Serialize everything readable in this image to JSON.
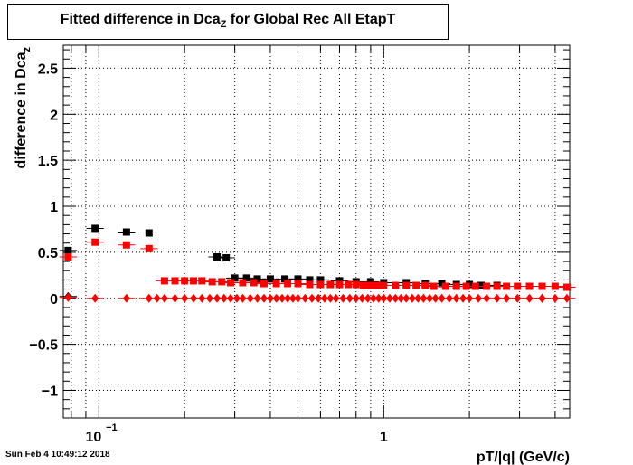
{
  "title": {
    "prefix": "Fitted difference in Dca",
    "subscript": "Z",
    "suffix": " for Global Rec All EtapT"
  },
  "timestamp": "Sun Feb  4 10:49:12 2018",
  "colors": {
    "black": "#000000",
    "red": "#ff0000",
    "grid": "#000000"
  },
  "chart_data": {
    "type": "scatter",
    "xscale": "log",
    "xlim": [
      0.075,
      4.5
    ],
    "ylim": [
      -1.3,
      2.75
    ],
    "grid": true,
    "xlabel": "pT/|q| (GeV/c)",
    "ylabel_prefix": "difference in Dca",
    "ylabel_subscript": "z",
    "yticks": [
      {
        "value": -1,
        "label": "−1"
      },
      {
        "value": -0.5,
        "label": "−0.5"
      },
      {
        "value": 0,
        "label": "0"
      },
      {
        "value": 0.5,
        "label": "0.5"
      },
      {
        "value": 1,
        "label": "1"
      },
      {
        "value": 1.5,
        "label": "1.5"
      },
      {
        "value": 2,
        "label": "2"
      },
      {
        "value": 2.5,
        "label": "2.5"
      }
    ],
    "xticks_major": [
      {
        "value": 0.1,
        "label": "10",
        "exp": "−1"
      },
      {
        "value": 1,
        "label": "1",
        "exp": ""
      }
    ],
    "series": [
      {
        "marker": "square",
        "color": "black",
        "x": [
          0.078,
          0.097,
          0.125,
          0.15,
          0.26,
          0.28,
          0.3,
          0.33,
          0.36,
          0.4,
          0.45,
          0.5,
          0.55,
          0.6,
          0.7,
          0.8,
          0.9,
          1.0,
          1.2,
          1.4,
          1.6,
          1.8,
          2.0,
          2.2,
          2.5
        ],
        "y": [
          0.52,
          0.76,
          0.72,
          0.71,
          0.45,
          0.44,
          0.22,
          0.22,
          0.21,
          0.21,
          0.21,
          0.21,
          0.2,
          0.2,
          0.19,
          0.18,
          0.18,
          0.17,
          0.17,
          0.16,
          0.16,
          0.15,
          0.15,
          0.14,
          0.14
        ]
      },
      {
        "marker": "square",
        "color": "red",
        "x": [
          0.078,
          0.097,
          0.125,
          0.15,
          0.17,
          0.185,
          0.2,
          0.215,
          0.23,
          0.25,
          0.27,
          0.29,
          0.32,
          0.35,
          0.38,
          0.42,
          0.46,
          0.5,
          0.55,
          0.6,
          0.65,
          0.7,
          0.75,
          0.8,
          0.85,
          0.9,
          0.95,
          1.0,
          1.1,
          1.2,
          1.3,
          1.4,
          1.5,
          1.65,
          1.8,
          1.95,
          2.1,
          2.3,
          2.5,
          2.7,
          2.95,
          3.25,
          3.6,
          4.0,
          4.4
        ],
        "y": [
          0.45,
          0.61,
          0.58,
          0.54,
          0.19,
          0.19,
          0.19,
          0.19,
          0.19,
          0.18,
          0.18,
          0.17,
          0.17,
          0.17,
          0.16,
          0.16,
          0.16,
          0.16,
          0.15,
          0.15,
          0.15,
          0.15,
          0.15,
          0.15,
          0.14,
          0.14,
          0.14,
          0.14,
          0.14,
          0.14,
          0.14,
          0.14,
          0.13,
          0.13,
          0.13,
          0.13,
          0.13,
          0.13,
          0.13,
          0.13,
          0.13,
          0.13,
          0.13,
          0.13,
          0.12
        ]
      },
      {
        "marker": "diamond",
        "color": "black",
        "x": [
          0.078,
          3.6
        ],
        "y": [
          0.02,
          0.0
        ]
      },
      {
        "marker": "diamond",
        "color": "red",
        "x": [
          0.078,
          0.097,
          0.125,
          0.15,
          0.16,
          0.17,
          0.185,
          0.2,
          0.215,
          0.23,
          0.245,
          0.26,
          0.275,
          0.29,
          0.305,
          0.32,
          0.34,
          0.36,
          0.38,
          0.4,
          0.42,
          0.44,
          0.46,
          0.48,
          0.5,
          0.53,
          0.56,
          0.59,
          0.62,
          0.65,
          0.68,
          0.72,
          0.76,
          0.8,
          0.84,
          0.88,
          0.92,
          0.96,
          1.0,
          1.05,
          1.1,
          1.15,
          1.2,
          1.26,
          1.32,
          1.38,
          1.45,
          1.52,
          1.6,
          1.7,
          1.8,
          1.9,
          2.0,
          2.15,
          2.3,
          2.5,
          2.7,
          2.95,
          3.25,
          3.6,
          4.0,
          4.4
        ],
        "y": [
          0.01,
          0.0,
          0.0,
          0.0,
          0.0,
          0.0,
          0.0,
          0.0,
          0.0,
          0.0,
          0.0,
          0.0,
          0.0,
          0.0,
          0.0,
          0.0,
          0.0,
          0.0,
          0.0,
          0.0,
          0.0,
          0.0,
          0.0,
          0.0,
          0.0,
          0.0,
          0.0,
          0.0,
          0.0,
          0.0,
          0.0,
          0.0,
          0.0,
          0.0,
          0.0,
          0.0,
          0.0,
          0.0,
          0.0,
          0.0,
          0.0,
          0.0,
          0.0,
          0.0,
          0.0,
          0.0,
          0.0,
          0.0,
          0.0,
          0.0,
          0.0,
          0.0,
          0.0,
          0.0,
          0.0,
          0.0,
          0.0,
          0.0,
          0.0,
          0.0,
          0.0,
          0.0
        ]
      }
    ]
  }
}
